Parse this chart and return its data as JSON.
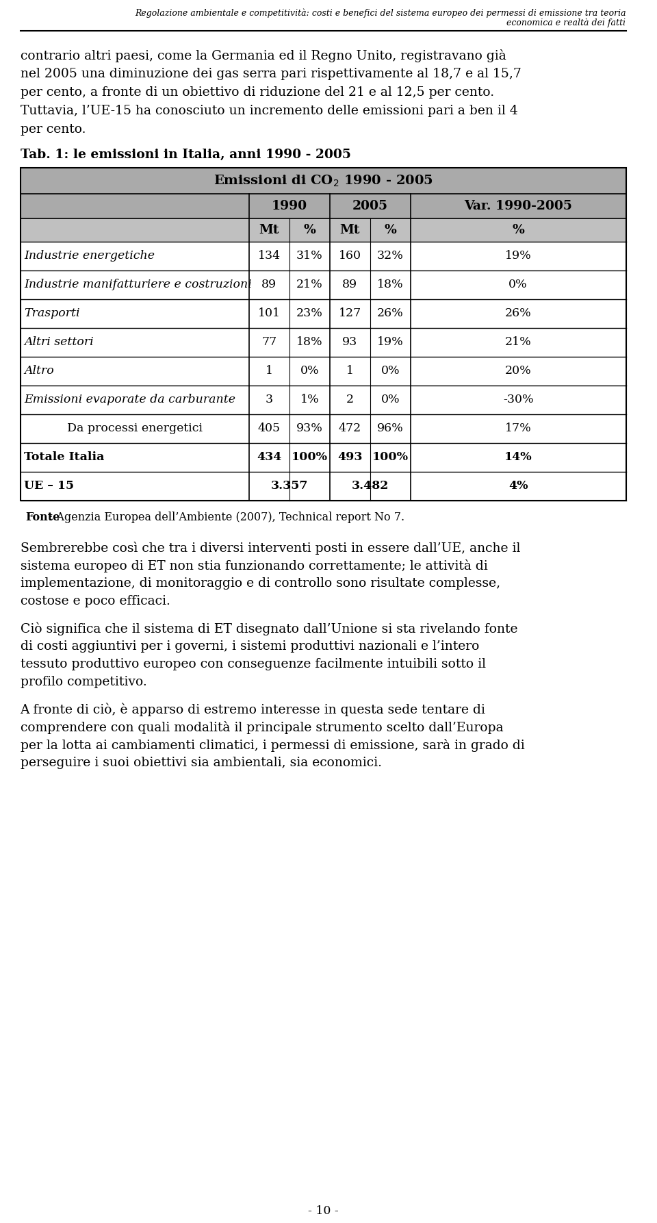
{
  "header_line1": "Regolazione ambientale e competitività: costi e benefici del sistema europeo dei permessi di emissione tra teoria",
  "header_line2": "economica e realtà dei fatti",
  "body1_lines": [
    "contrario altri paesi, come la Germania ed il Regno Unito, registravano già",
    "nel 2005 una diminuzione dei gas serra pari rispettivamente al 18,7 e al 15,7",
    "per cento, a fronte di un obiettivo di riduzione del 21 e al 12,5 per cento.",
    "Tuttavia, l’UE-15 ha conosciuto un incremento delle emissioni pari a ben il 4",
    "per cento."
  ],
  "tab_title": "Tab. 1: le emissioni in Italia, anni 1990 - 2005",
  "table_header_title": "Emissioni di CO₂ 1990 - 2005",
  "rows": [
    {
      "label": "Industrie energetiche",
      "italic": true,
      "bold": false,
      "indent": false,
      "v1990_mt": "134",
      "v1990_pct": "31%",
      "v2005_mt": "160",
      "v2005_pct": "32%",
      "var": "19%",
      "ue15_1990": "",
      "ue15_2005": ""
    },
    {
      "label": "Industrie manifatturiere e costruzioni",
      "italic": true,
      "bold": false,
      "indent": false,
      "v1990_mt": "89",
      "v1990_pct": "21%",
      "v2005_mt": "89",
      "v2005_pct": "18%",
      "var": "0%",
      "ue15_1990": "",
      "ue15_2005": ""
    },
    {
      "label": "Trasporti",
      "italic": true,
      "bold": false,
      "indent": false,
      "v1990_mt": "101",
      "v1990_pct": "23%",
      "v2005_mt": "127",
      "v2005_pct": "26%",
      "var": "26%",
      "ue15_1990": "",
      "ue15_2005": ""
    },
    {
      "label": "Altri settori",
      "italic": true,
      "bold": false,
      "indent": false,
      "v1990_mt": "77",
      "v1990_pct": "18%",
      "v2005_mt": "93",
      "v2005_pct": "19%",
      "var": "21%",
      "ue15_1990": "",
      "ue15_2005": ""
    },
    {
      "label": "Altro",
      "italic": true,
      "bold": false,
      "indent": false,
      "v1990_mt": "1",
      "v1990_pct": "0%",
      "v2005_mt": "1",
      "v2005_pct": "0%",
      "var": "20%",
      "ue15_1990": "",
      "ue15_2005": ""
    },
    {
      "label": "Emissioni evaporate da carburante",
      "italic": true,
      "bold": false,
      "indent": false,
      "v1990_mt": "3",
      "v1990_pct": "1%",
      "v2005_mt": "2",
      "v2005_pct": "0%",
      "var": "-30%",
      "ue15_1990": "",
      "ue15_2005": ""
    },
    {
      "label": "Da processi energetici",
      "italic": false,
      "bold": false,
      "indent": true,
      "v1990_mt": "405",
      "v1990_pct": "93%",
      "v2005_mt": "472",
      "v2005_pct": "96%",
      "var": "17%",
      "ue15_1990": "",
      "ue15_2005": ""
    },
    {
      "label": "Totale Italia",
      "italic": false,
      "bold": true,
      "indent": false,
      "v1990_mt": "434",
      "v1990_pct": "100%",
      "v2005_mt": "493",
      "v2005_pct": "100%",
      "var": "14%",
      "ue15_1990": "",
      "ue15_2005": ""
    },
    {
      "label": "UE – 15",
      "italic": false,
      "bold": true,
      "indent": false,
      "v1990_mt": "3.357",
      "v1990_pct": "",
      "v2005_mt": "3.482",
      "v2005_pct": "",
      "var": "4%",
      "ue15_1990": "3.357",
      "ue15_2005": "3.482"
    }
  ],
  "fonte_bold": "Fonte",
  "fonte_rest": ": Agenzia Europea dell’Ambiente (2007), Technical report No 7.",
  "body2_lines": [
    "Sembrerebbe così che tra i diversi interventi posti in essere dall’UE, anche il",
    "sistema europeo di ET non stia funzionando correttamente; le attività di",
    "implementazione, di monitoraggio e di controllo sono risultate complesse,",
    "costose e poco efficaci."
  ],
  "body3_lines": [
    "Ciò significa che il sistema di ET disegnato dall’Unione si sta rivelando fonte",
    "di costi aggiuntivi per i governi, i sistemi produttivi nazionali e l’intero",
    "tessuto produttivo europeo con conseguenze facilmente intuibili sotto il",
    "profilo competitivo."
  ],
  "body4_lines": [
    "A fronte di ciò, è apparso di estremo interesse in questa sede tentare di",
    "comprendere con quali modalità il principale strumento scelto dall’Europa",
    "per la lotta ai cambiamenti climatici, i permessi di emissione, sarà in grado di",
    "perseguire i suoi obiettivi sia ambientali, sia economici."
  ],
  "page_number": "- 10 -",
  "bg_color": "#ffffff",
  "table_header_bg": "#aaaaaa",
  "table_subheader_bg": "#c0c0c0",
  "table_border_color": "#000000"
}
